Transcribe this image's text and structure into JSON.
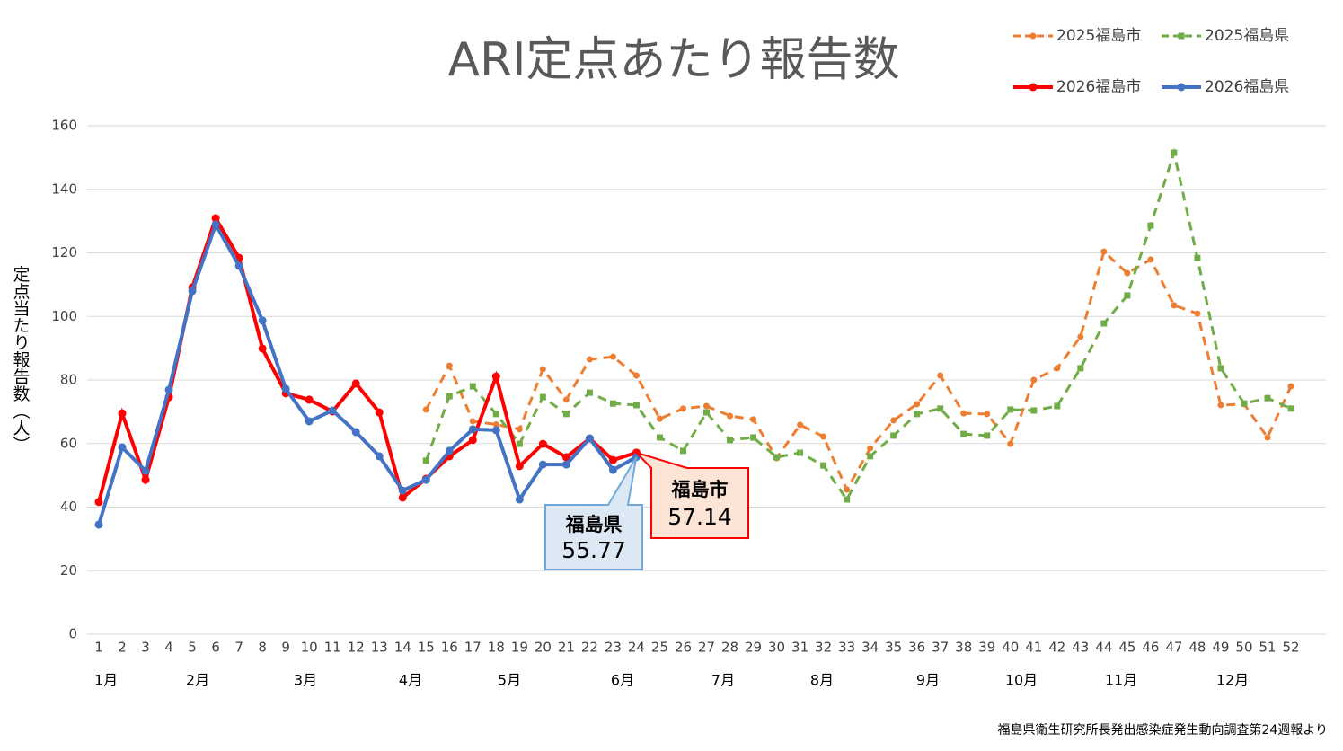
{
  "chart_data": {
    "type": "line",
    "title": "ARI定点あたり報告数",
    "y_label": "定点当たり報告数（人）",
    "source": "福島県衛生研究所長発出感染症発生動向調査第24週報より",
    "categories": [
      "1",
      "2",
      "3",
      "4",
      "5",
      "6",
      "7",
      "8",
      "9",
      "10",
      "11",
      "12",
      "13",
      "14",
      "15",
      "16",
      "17",
      "18",
      "19",
      "20",
      "21",
      "22",
      "23",
      "24",
      "25",
      "26",
      "27",
      "28",
      "29",
      "30",
      "31",
      "32",
      "33",
      "34",
      "35",
      "36",
      "37",
      "38",
      "39",
      "40",
      "41",
      "42",
      "43",
      "44",
      "45",
      "46",
      "47",
      "48",
      "49",
      "50",
      "51",
      "52"
    ],
    "month_labels": [
      "1月",
      "2月",
      "3月",
      "4月",
      "5月",
      "6月",
      "7月",
      "8月",
      "9月",
      "10月",
      "11月",
      "12月"
    ],
    "ylim": [
      0,
      160
    ],
    "yticks": [
      0,
      20,
      40,
      60,
      80,
      100,
      120,
      140,
      160
    ],
    "grid": true,
    "series": [
      {
        "name": "2025福島市",
        "color": "#ed7d31",
        "dashed": true,
        "marker": "circle",
        "values": [
          null,
          null,
          null,
          null,
          null,
          null,
          null,
          null,
          null,
          null,
          null,
          null,
          null,
          null,
          70.7,
          84.5,
          67.0,
          66.0,
          64.5,
          83.4,
          73.8,
          86.5,
          87.3,
          81.4,
          67.8,
          71.0,
          71.8,
          68.7,
          67.6,
          55.4,
          65.9,
          62.2,
          45.5,
          58.5,
          67.3,
          72.4,
          81.4,
          69.5,
          69.3,
          59.9,
          80.0,
          83.7,
          93.6,
          120.4,
          113.6,
          117.9,
          103.5,
          100.9,
          72.1,
          72.4,
          61.9,
          78.0
        ]
      },
      {
        "name": "2025福島県",
        "color": "#70ad47",
        "dashed": true,
        "marker": "square",
        "values": [
          null,
          null,
          null,
          null,
          null,
          null,
          null,
          null,
          null,
          null,
          null,
          null,
          null,
          null,
          54.6,
          74.9,
          78.0,
          69.3,
          59.9,
          74.6,
          69.3,
          76.0,
          72.6,
          72.1,
          61.9,
          57.7,
          69.8,
          61.1,
          61.9,
          55.7,
          57.1,
          53.1,
          42.4,
          56.0,
          62.5,
          69.3,
          71.0,
          63.0,
          62.5,
          70.7,
          70.4,
          71.8,
          83.7,
          97.8,
          106.6,
          128.6,
          151.5,
          118.4,
          83.7,
          72.6,
          74.3,
          71.0
        ]
      },
      {
        "name": "2026福島市",
        "color": "#ff0000",
        "dashed": false,
        "marker": "circle",
        "values": [
          41.6,
          69.5,
          48.6,
          74.6,
          109.1,
          130.9,
          118.4,
          89.9,
          75.8,
          73.8,
          70.1,
          78.9,
          69.8,
          43.0,
          48.9,
          56.0,
          61.1,
          81.1,
          52.9,
          59.9,
          55.7,
          61.6,
          54.8,
          57.14,
          null,
          null,
          null,
          null,
          null,
          null,
          null,
          null,
          null,
          null,
          null,
          null,
          null,
          null,
          null,
          null,
          null,
          null,
          null,
          null,
          null,
          null,
          null,
          null,
          null,
          null,
          null,
          null
        ]
      },
      {
        "name": "2026福島県",
        "color": "#4472c4",
        "dashed": false,
        "marker": "circle",
        "values": [
          34.5,
          58.8,
          51.4,
          76.9,
          108.0,
          128.9,
          115.9,
          98.7,
          77.2,
          67.0,
          70.4,
          63.6,
          56.0,
          45.2,
          48.6,
          57.7,
          64.5,
          64.2,
          42.4,
          53.4,
          53.4,
          61.6,
          51.7,
          55.77,
          null,
          null,
          null,
          null,
          null,
          null,
          null,
          null,
          null,
          null,
          null,
          null,
          null,
          null,
          null,
          null,
          null,
          null,
          null,
          null,
          null,
          null,
          null,
          null,
          null,
          null,
          null,
          null
        ]
      }
    ],
    "annotations": [
      {
        "label": "福島市"
      },
      {
        "label": "福島県"
      }
    ]
  }
}
